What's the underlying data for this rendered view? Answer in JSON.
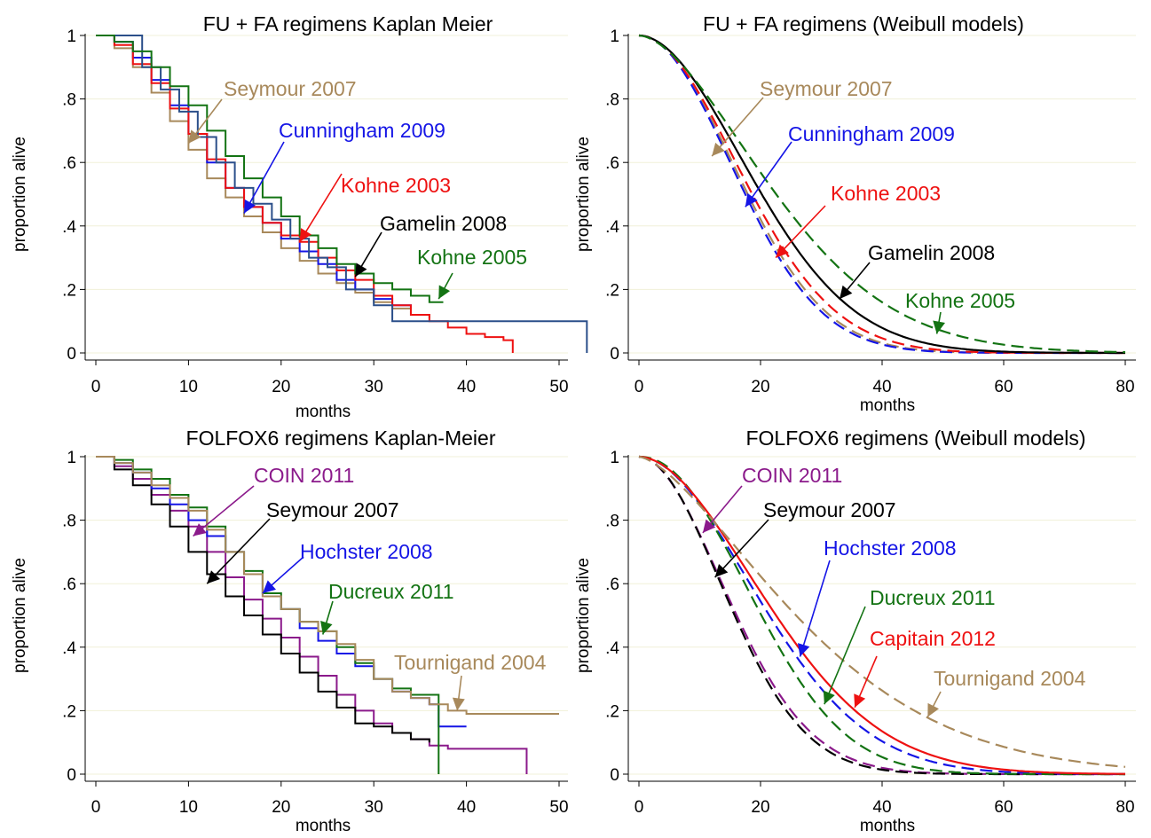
{
  "charts": [
    {
      "type": "line",
      "title": "FU + FA regimens Kaplan Meier",
      "xlabel": "months",
      "ylabel": "proportion alive",
      "xlim": [
        0,
        55
      ],
      "ylim": [
        0,
        1
      ],
      "xticks": [
        "0",
        "10",
        "20",
        "30",
        "40",
        "50"
      ],
      "xtick_values": [
        0,
        10,
        20,
        30,
        40,
        50
      ],
      "yticks": [
        "0",
        ".2",
        ".4",
        ".6",
        ".8",
        "1"
      ],
      "ytick_values": [
        0,
        0.2,
        0.4,
        0.6,
        0.8,
        1
      ],
      "grid": true,
      "series": [
        {
          "name": "Seymour 2007",
          "color": "#a8895b",
          "style": "step-solid",
          "x": [
            0,
            2,
            4,
            6,
            8,
            10,
            12,
            14,
            16,
            18,
            20,
            22,
            24,
            26,
            28,
            30,
            32,
            34,
            36
          ],
          "y": [
            1,
            0.96,
            0.9,
            0.82,
            0.73,
            0.64,
            0.55,
            0.49,
            0.43,
            0.38,
            0.33,
            0.29,
            0.25,
            0.22,
            0.19,
            0.16,
            0.14,
            0.12,
            0.11
          ]
        },
        {
          "name": "Cunningham 2009",
          "color": "#1515e6",
          "style": "step-solid",
          "x": [
            0,
            2,
            4,
            6,
            8,
            10,
            12,
            14,
            16,
            18,
            20,
            22,
            24,
            26,
            28,
            30,
            32,
            34
          ],
          "y": [
            1,
            0.98,
            0.93,
            0.86,
            0.78,
            0.69,
            0.6,
            0.52,
            0.46,
            0.41,
            0.36,
            0.32,
            0.28,
            0.23,
            0.2,
            0.17,
            0.15,
            0.14
          ]
        },
        {
          "name": "Kohne 2003",
          "color": "#ee1111",
          "style": "step-solid",
          "x": [
            0,
            2,
            4,
            6,
            8,
            10,
            12,
            14,
            16,
            18,
            20,
            22,
            24,
            26,
            28,
            30,
            32,
            34,
            36,
            38,
            40,
            42,
            44,
            45
          ],
          "y": [
            1,
            0.97,
            0.91,
            0.85,
            0.77,
            0.69,
            0.61,
            0.52,
            0.46,
            0.41,
            0.37,
            0.35,
            0.3,
            0.26,
            0.23,
            0.18,
            0.15,
            0.12,
            0.1,
            0.08,
            0.06,
            0.05,
            0.04,
            0
          ]
        },
        {
          "name": "Gamelin 2008",
          "color": "#2b4f8a",
          "style": "step-solid",
          "x": [
            0,
            4,
            5,
            7,
            9,
            11,
            13,
            15,
            17,
            19,
            21,
            23,
            25,
            27,
            30,
            32,
            36,
            40,
            45,
            50,
            53
          ],
          "y": [
            1,
            1,
            0.9,
            0.83,
            0.76,
            0.68,
            0.6,
            0.52,
            0.47,
            0.42,
            0.36,
            0.3,
            0.27,
            0.2,
            0.15,
            0.1,
            0.1,
            0.1,
            0.1,
            0.1,
            0
          ]
        },
        {
          "name": "Kohne 2005",
          "color": "#137313",
          "style": "step-solid",
          "x": [
            0,
            2,
            4,
            6,
            8,
            10,
            12,
            14,
            16,
            18,
            20,
            22,
            24,
            26,
            28,
            30,
            32,
            34,
            36,
            37.5
          ],
          "y": [
            1,
            0.98,
            0.95,
            0.9,
            0.84,
            0.78,
            0.7,
            0.62,
            0.55,
            0.49,
            0.43,
            0.37,
            0.33,
            0.28,
            0.25,
            0.22,
            0.2,
            0.18,
            0.16,
            0.16
          ]
        }
      ],
      "annotations": [
        {
          "text": "Seymour 2007",
          "color": "#a8895b",
          "series": 0
        },
        {
          "text": "Cunningham 2009",
          "color": "#1515e6",
          "series": 1
        },
        {
          "text": "Kohne 2003",
          "color": "#ee1111",
          "series": 2
        },
        {
          "text": "Gamelin 2008",
          "color": "#000000",
          "series": 3
        },
        {
          "text": "Kohne 2005",
          "color": "#137313",
          "series": 4
        }
      ]
    },
    {
      "type": "line",
      "title": "FU + FA regimens (Weibull models)",
      "xlabel": "months",
      "ylabel": "proportion alive",
      "xlim": [
        -2,
        81
      ],
      "ylim": [
        0,
        1
      ],
      "xticks": [
        "0",
        "20",
        "40",
        "60",
        "80"
      ],
      "xtick_values": [
        0,
        20,
        40,
        60,
        80
      ],
      "yticks": [
        "0",
        ".2",
        ".4",
        ".6",
        ".8",
        "1"
      ],
      "ytick_values": [
        0,
        0.2,
        0.4,
        0.6,
        0.8,
        1
      ],
      "grid": true,
      "series": [
        {
          "name": "Seymour 2007",
          "color": "#a8895b",
          "style": "dashed",
          "weibull_scale": 21.5,
          "weibull_shape": 2.0
        },
        {
          "name": "Cunningham 2009",
          "color": "#1515e6",
          "style": "dashed",
          "weibull_scale": 21.0,
          "weibull_shape": 2.0
        },
        {
          "name": "Kohne 2003",
          "color": "#ee1111",
          "style": "dashed",
          "weibull_scale": 22.5,
          "weibull_shape": 1.95
        },
        {
          "name": "Gamelin 2008",
          "color": "#000000",
          "style": "solid",
          "weibull_scale": 24.5,
          "weibull_shape": 1.9
        },
        {
          "name": "Kohne 2005",
          "color": "#137313",
          "style": "dashed",
          "weibull_scale": 28.0,
          "weibull_shape": 1.7
        }
      ],
      "annotations": [
        {
          "text": "Seymour 2007",
          "color": "#a8895b",
          "series": 0
        },
        {
          "text": "Cunningham 2009",
          "color": "#1515e6",
          "series": 1
        },
        {
          "text": "Kohne 2003",
          "color": "#ee1111",
          "series": 2
        },
        {
          "text": "Gamelin 2008",
          "color": "#000000",
          "series": 3
        },
        {
          "text": "Kohne 2005",
          "color": "#137313",
          "series": 4
        }
      ]
    },
    {
      "type": "line",
      "title": "FOLFOX6 regimens Kaplan-Meier",
      "xlabel": "months",
      "ylabel": "proportion alive",
      "xlim": [
        0,
        52
      ],
      "ylim": [
        0,
        1
      ],
      "xticks": [
        "0",
        "10",
        "20",
        "30",
        "40",
        "50"
      ],
      "xtick_values": [
        0,
        10,
        20,
        30,
        40,
        50
      ],
      "yticks": [
        "0",
        ".2",
        ".4",
        ".6",
        ".8",
        "1"
      ],
      "ytick_values": [
        0,
        0.2,
        0.4,
        0.6,
        0.8,
        1
      ],
      "grid": true,
      "series": [
        {
          "name": "COIN 2011",
          "color": "#8b1a8b",
          "style": "step-solid",
          "x": [
            0,
            2,
            4,
            6,
            8,
            10,
            12,
            14,
            16,
            18,
            20,
            22,
            24,
            26,
            28,
            30,
            32,
            34,
            36,
            38,
            40,
            46.5
          ],
          "y": [
            1,
            0.97,
            0.93,
            0.88,
            0.83,
            0.78,
            0.7,
            0.62,
            0.55,
            0.49,
            0.43,
            0.37,
            0.31,
            0.25,
            0.2,
            0.16,
            0.13,
            0.11,
            0.09,
            0.08,
            0.08,
            0
          ]
        },
        {
          "name": "Seymour 2007",
          "color": "#000000",
          "style": "step-solid",
          "x": [
            0,
            2,
            4,
            6,
            8,
            10,
            12,
            14,
            16,
            18,
            20,
            22,
            24,
            26,
            28,
            30,
            32,
            34,
            36
          ],
          "y": [
            1,
            0.96,
            0.91,
            0.85,
            0.78,
            0.7,
            0.63,
            0.56,
            0.5,
            0.44,
            0.38,
            0.32,
            0.26,
            0.21,
            0.16,
            0.15,
            0.13,
            0.11,
            0.1
          ]
        },
        {
          "name": "Hochster 2008",
          "color": "#1515e6",
          "style": "step-solid",
          "x": [
            0,
            2,
            4,
            6,
            8,
            10,
            12,
            14,
            16,
            18,
            20,
            22,
            24,
            26,
            28,
            30,
            32,
            34,
            36,
            37,
            40
          ],
          "y": [
            1,
            0.98,
            0.95,
            0.9,
            0.85,
            0.8,
            0.75,
            0.7,
            0.63,
            0.56,
            0.52,
            0.46,
            0.42,
            0.38,
            0.34,
            0.3,
            0.26,
            0.24,
            0.22,
            0.15,
            0.15
          ]
        },
        {
          "name": "Ducreux 2011",
          "color": "#137313",
          "style": "step-solid",
          "x": [
            0,
            2,
            4,
            6,
            8,
            10,
            12,
            14,
            16,
            18,
            20,
            22,
            24,
            26,
            28,
            30,
            32,
            34,
            36,
            37
          ],
          "y": [
            1,
            0.99,
            0.96,
            0.93,
            0.88,
            0.84,
            0.78,
            0.7,
            0.64,
            0.57,
            0.52,
            0.48,
            0.45,
            0.4,
            0.35,
            0.3,
            0.27,
            0.25,
            0.25,
            0
          ]
        },
        {
          "name": "Tournigand 2004",
          "color": "#a8895b",
          "style": "step-solid",
          "x": [
            0,
            2,
            4,
            6,
            8,
            10,
            12,
            14,
            16,
            18,
            20,
            22,
            24,
            26,
            28,
            30,
            32,
            34,
            36,
            38,
            40,
            45,
            50
          ],
          "y": [
            1,
            0.98,
            0.95,
            0.91,
            0.87,
            0.83,
            0.77,
            0.7,
            0.63,
            0.56,
            0.52,
            0.48,
            0.45,
            0.41,
            0.36,
            0.3,
            0.26,
            0.24,
            0.22,
            0.2,
            0.19,
            0.19,
            0.19
          ]
        }
      ],
      "annotations": [
        {
          "text": "COIN 2011",
          "color": "#8b1a8b",
          "series": 0
        },
        {
          "text": "Seymour 2007",
          "color": "#000000",
          "series": 1
        },
        {
          "text": "Hochster 2008",
          "color": "#1515e6",
          "series": 2
        },
        {
          "text": "Ducreux 2011",
          "color": "#137313",
          "series": 3
        },
        {
          "text": "Tournigand 2004",
          "color": "#a8895b",
          "series": 4
        }
      ]
    },
    {
      "type": "line",
      "title": "FOLFOX6 regimens (Weibull models)",
      "xlabel": "months",
      "ylabel": "proportion alive",
      "xlim": [
        -2,
        81
      ],
      "ylim": [
        0,
        1
      ],
      "xticks": [
        "0",
        "20",
        "40",
        "60",
        "80"
      ],
      "xtick_values": [
        0,
        20,
        40,
        60,
        80
      ],
      "yticks": [
        "0",
        ".2",
        ".4",
        ".6",
        ".8",
        "1"
      ],
      "ytick_values": [
        0,
        0.2,
        0.4,
        0.6,
        0.8,
        1
      ],
      "grid": true,
      "series": [
        {
          "name": "COIN 2011",
          "color": "#8b1a8b",
          "style": "dashed",
          "weibull_scale": 19.5,
          "weibull_shape": 1.9
        },
        {
          "name": "Seymour 2007",
          "color": "#000000",
          "style": "dashed",
          "weibull_scale": 19.0,
          "weibull_shape": 1.95
        },
        {
          "name": "Hochster 2008",
          "color": "#1515e6",
          "style": "dashed",
          "weibull_scale": 26.0,
          "weibull_shape": 1.9
        },
        {
          "name": "Ducreux 2011",
          "color": "#137313",
          "style": "dashed",
          "weibull_scale": 24.0,
          "weibull_shape": 2.1
        },
        {
          "name": "Capitain 2012",
          "color": "#ee1111",
          "style": "solid",
          "weibull_scale": 27.5,
          "weibull_shape": 1.85
        },
        {
          "name": "Tournigand 2004",
          "color": "#a8895b",
          "style": "dashed",
          "weibull_scale": 33.0,
          "weibull_shape": 1.5
        }
      ],
      "annotations": [
        {
          "text": "COIN 2011",
          "color": "#8b1a8b",
          "series": 0
        },
        {
          "text": "Seymour 2007",
          "color": "#000000",
          "series": 1
        },
        {
          "text": "Hochster 2008",
          "color": "#1515e6",
          "series": 2
        },
        {
          "text": "Ducreux 2011",
          "color": "#137313",
          "series": 3
        },
        {
          "text": "Capitain 2012",
          "color": "#ee1111",
          "series": 4
        },
        {
          "text": "Tournigand 2004",
          "color": "#a8895b",
          "series": 5
        }
      ]
    }
  ]
}
